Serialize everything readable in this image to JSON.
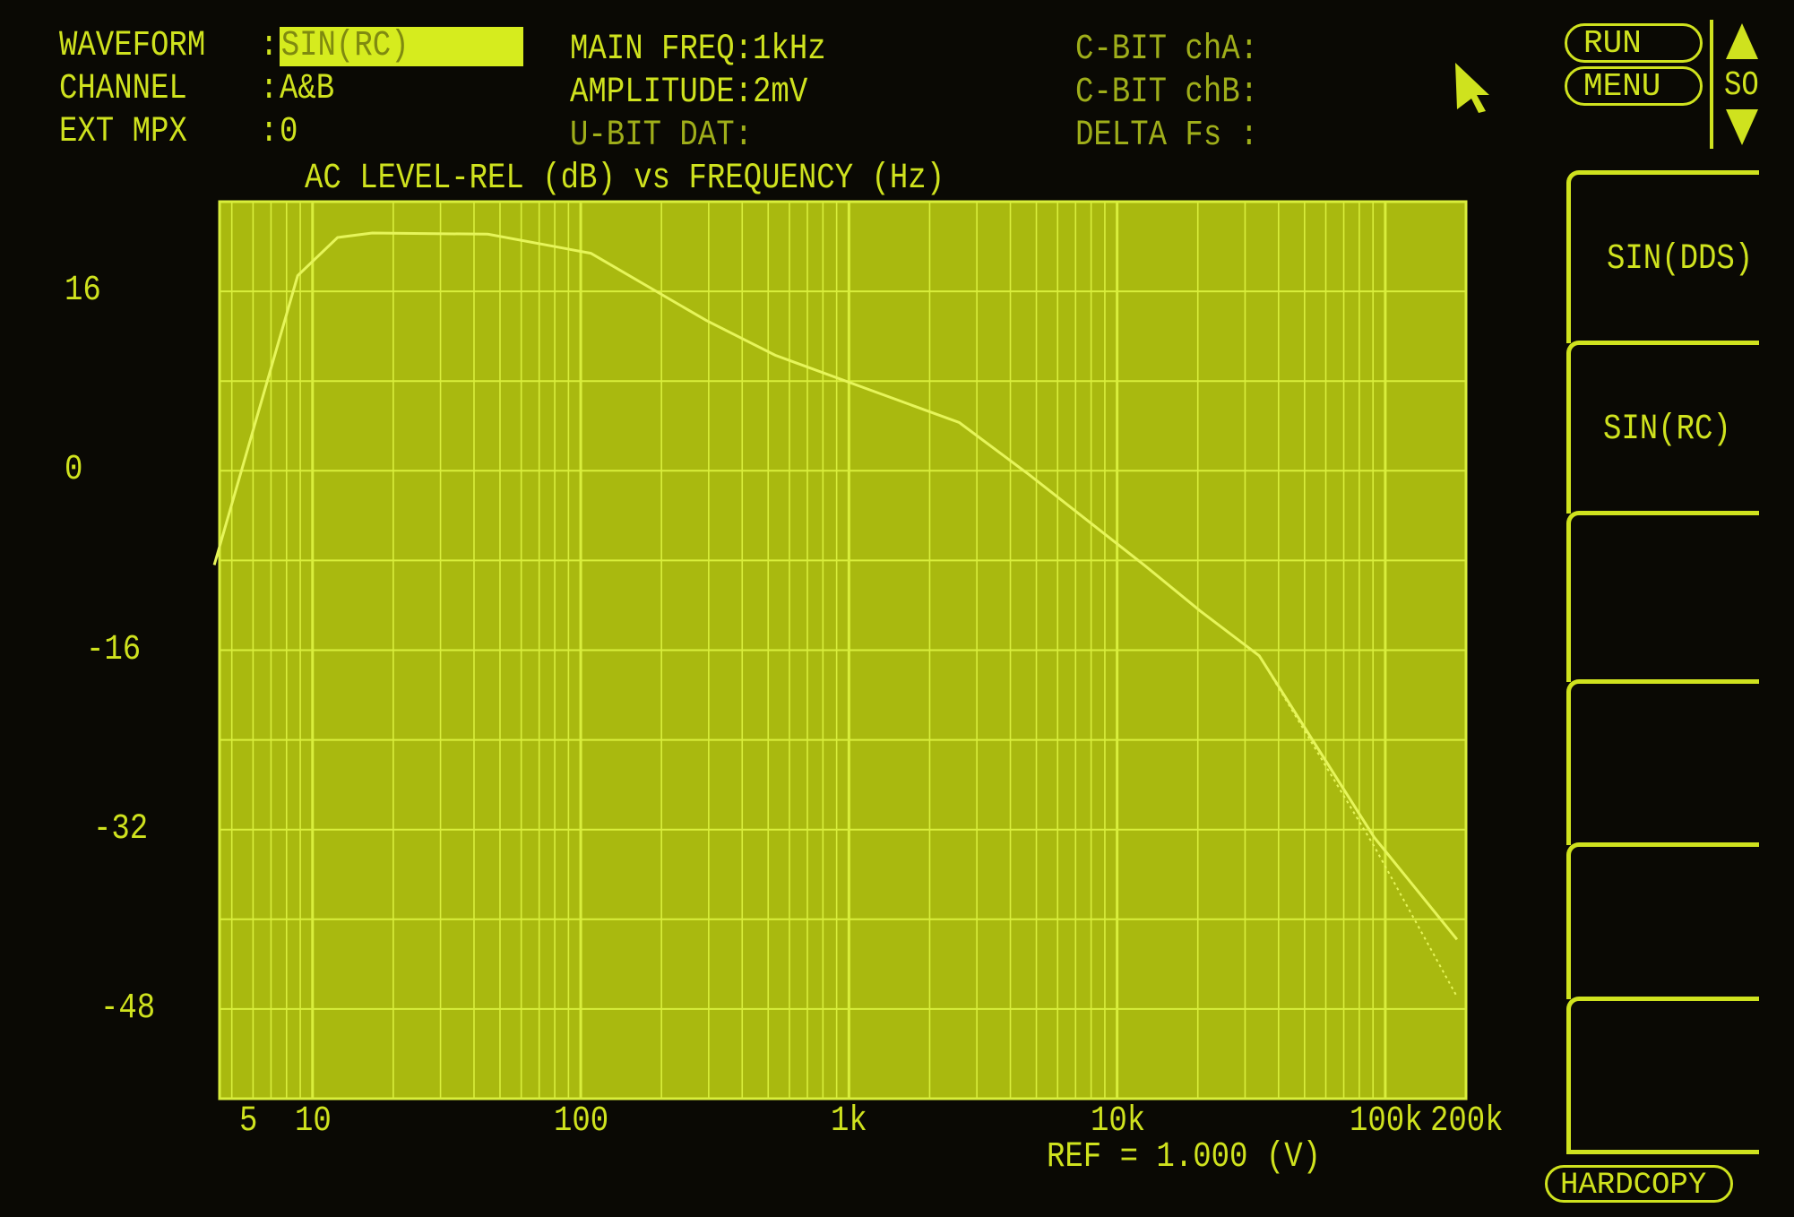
{
  "header": {
    "waveform_label": "WAVEFORM",
    "waveform_value": "SIN(RC)",
    "channel_label": "CHANNEL",
    "channel_value": "A&B",
    "ext_mpx_label": "EXT MPX",
    "ext_mpx_value": "0",
    "colon": ":",
    "main_freq": "MAIN FREQ:1kHz",
    "amplitude": "AMPLITUDE:2mV",
    "u_bit": "U-BIT DAT:",
    "c_bit_a": "C-BIT chA:",
    "c_bit_b": "C-BIT chB:",
    "delta_fs": "DELTA Fs :"
  },
  "controls": {
    "run": "RUN",
    "menu": "MENU",
    "scroll_label": "SO",
    "hardcopy": "HARDCOPY",
    "cursor_icon": "arrow-pointer",
    "up_icon": "triangle-up",
    "down_icon": "triangle-down"
  },
  "softkeys": [
    {
      "label": "SIN(DDS)"
    },
    {
      "label": "SIN(RC)"
    },
    {
      "label": ""
    },
    {
      "label": ""
    },
    {
      "label": ""
    },
    {
      "label": ""
    }
  ],
  "ref": "REF = 1.000 (V)",
  "colors": {
    "phosphor": "#cfe21e",
    "plot_bg": "#a9b90f",
    "grid": "#d9ee3c",
    "background": "#0a0904"
  },
  "chart_data": {
    "type": "line",
    "title": "AC LEVEL-REL (dB) vs FREQUENCY (Hz)",
    "xscale": "log",
    "xlim": [
      4.5,
      200000
    ],
    "ylim": [
      -56,
      24
    ],
    "grid": true,
    "x_ticks": [
      5,
      10,
      100,
      1000,
      10000,
      100000,
      200000
    ],
    "x_tick_labels": [
      "5",
      "10",
      "100",
      "1k",
      "10k",
      "100k",
      "200k"
    ],
    "y_ticks": [
      16,
      0,
      -16,
      -32,
      -48
    ],
    "y_tick_labels": [
      "16",
      "0",
      "-16",
      "-32",
      "-48"
    ],
    "series": [
      {
        "style": "solid",
        "x": [
          4.3,
          8.8,
          12.4,
          16.7,
          45,
          109,
          294,
          531,
          1170,
          2580,
          4670,
          12600,
          20400,
          33900,
          91000,
          185000
        ],
        "y": [
          -8.4,
          17.4,
          20.8,
          21.2,
          21.1,
          19.4,
          13.4,
          10.3,
          7.3,
          4.3,
          -0.3,
          -8.4,
          -12.5,
          -16.5,
          -32.7,
          -41.8
        ]
      },
      {
        "style": "dotted",
        "x": [
          33900,
          91000,
          185000
        ],
        "y": [
          -16.5,
          -33.5,
          -46.9
        ]
      }
    ]
  }
}
